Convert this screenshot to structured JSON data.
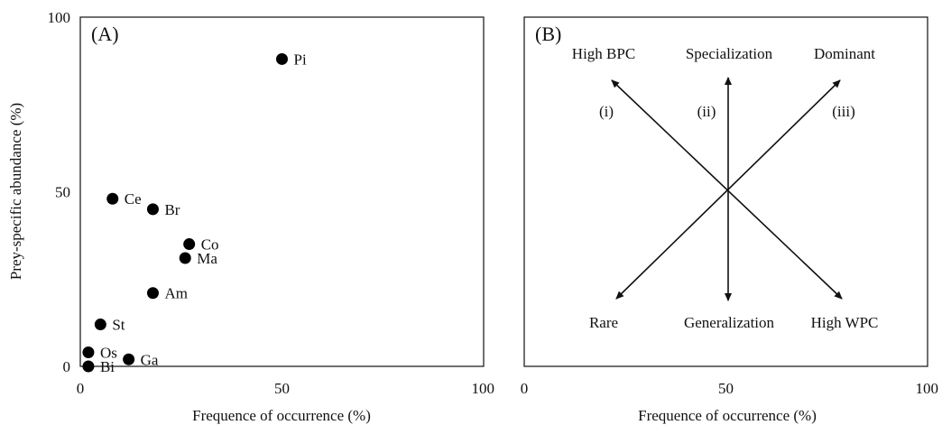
{
  "chart_data": [
    {
      "type": "scatter",
      "panel_tag": "(A)",
      "xlabel": "Frequence of occurrence (%)",
      "ylabel": "Prey-specific abundance (%)",
      "xlim": [
        0,
        100
      ],
      "ylim": [
        0,
        100
      ],
      "xticks": [
        "0",
        "50",
        "100"
      ],
      "yticks": [
        "0",
        "50",
        "100"
      ],
      "grid": false,
      "points": [
        {
          "label": "Pi",
          "x": 50,
          "y": 88
        },
        {
          "label": "Ce",
          "x": 8,
          "y": 48
        },
        {
          "label": "Br",
          "x": 18,
          "y": 45
        },
        {
          "label": "Co",
          "x": 27,
          "y": 35
        },
        {
          "label": "Ma",
          "x": 26,
          "y": 31
        },
        {
          "label": "Am",
          "x": 18,
          "y": 21
        },
        {
          "label": "St",
          "x": 5,
          "y": 12
        },
        {
          "label": "Os",
          "x": 2,
          "y": 4
        },
        {
          "label": "Ga",
          "x": 12,
          "y": 2
        },
        {
          "label": "Bi",
          "x": 2,
          "y": 0
        }
      ]
    },
    {
      "type": "diagram",
      "panel_tag": "(B)",
      "xlabel": "Frequence of occurrence (%)",
      "xlim": [
        0,
        100
      ],
      "xticks": [
        "0",
        "50",
        "100"
      ],
      "center": [
        50,
        50
      ],
      "top_labels": [
        "High BPC",
        "Specialization",
        "Dominant"
      ],
      "bottom_labels": [
        "Rare",
        "Generalization",
        "High WPC"
      ],
      "axis_numerals": [
        "(i)",
        "(ii)",
        "(iii)"
      ]
    }
  ]
}
